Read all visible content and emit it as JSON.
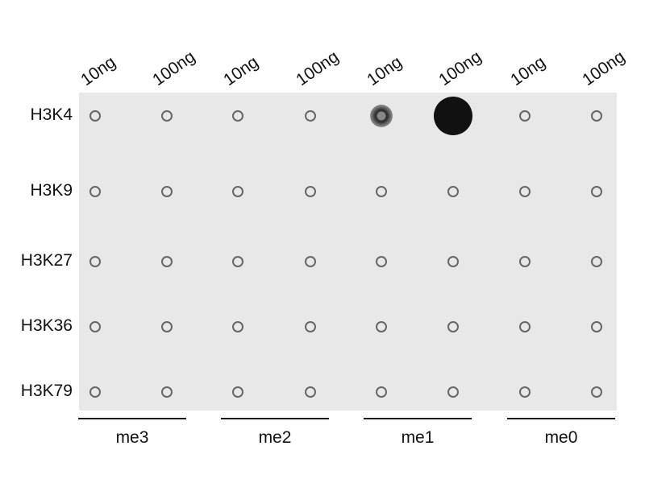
{
  "columns": [
    "10ng",
    "100ng",
    "10ng",
    "100ng",
    "10ng",
    "100ng",
    "10ng",
    "100ng"
  ],
  "rows": [
    "H3K4",
    "H3K9",
    "H3K27",
    "H3K36",
    "H3K79"
  ],
  "groups": [
    "me3",
    "me2",
    "me1",
    "me0"
  ],
  "signal": [
    [
      0,
      0,
      0,
      0,
      0.5,
      1,
      0,
      0
    ],
    [
      0,
      0,
      0,
      0,
      0,
      0,
      0,
      0
    ],
    [
      0,
      0,
      0,
      0,
      0,
      0,
      0,
      0
    ],
    [
      0,
      0,
      0,
      0,
      0,
      0,
      0,
      0
    ],
    [
      0,
      0,
      0,
      0,
      0,
      0,
      0,
      0
    ]
  ],
  "colors": {
    "membrane": "#e8e8e8",
    "dot": "#111111"
  }
}
